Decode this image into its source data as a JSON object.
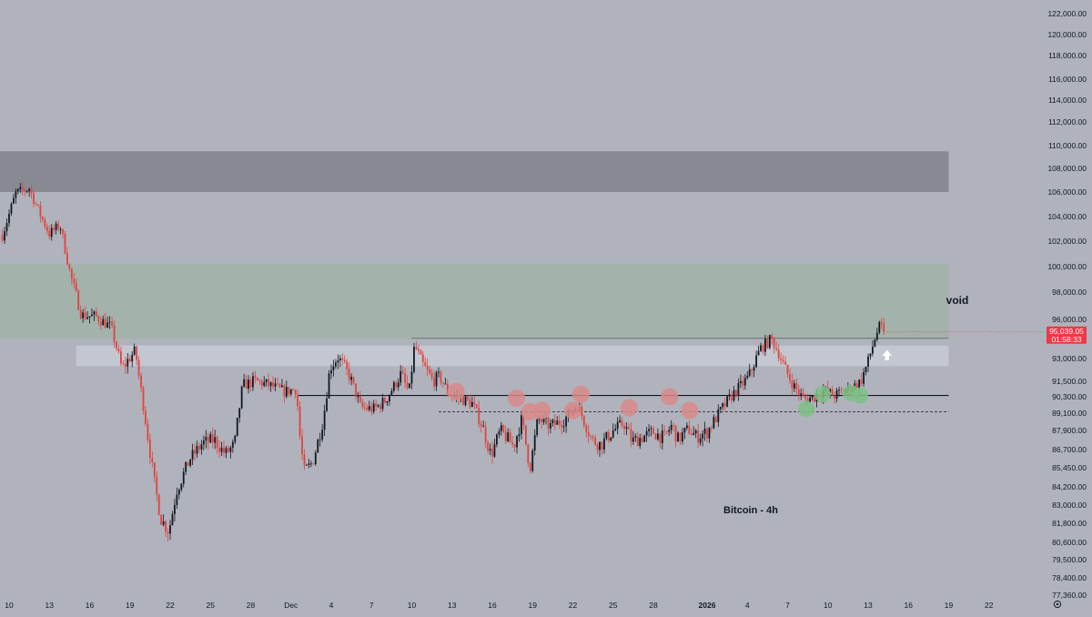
{
  "chart_data": {
    "type": "candlestick",
    "title": "Bitcoin - 4h",
    "annotation": "void",
    "colors": {
      "background": "#b0b3bb",
      "up": "#131722",
      "down": "#e0433f",
      "price_badge": "#f23645",
      "supply_zone": "#878a92",
      "void_zone": "#a3b2aa",
      "light_zone": "#c4c7cf",
      "marker_red": "#d98a8a",
      "marker_green": "#7fbf86"
    },
    "current_price": {
      "value": 95039,
      "label": "95,039.05",
      "countdown": "01:58:33"
    },
    "y_ticks": [
      {
        "value": 122000,
        "label": "122,000.00"
      },
      {
        "value": 120000,
        "label": "120,000.00"
      },
      {
        "value": 118000,
        "label": "118,000.00"
      },
      {
        "value": 116000,
        "label": "116,000.00"
      },
      {
        "value": 114000,
        "label": "114,000.00"
      },
      {
        "value": 112000,
        "label": "112,000.00"
      },
      {
        "value": 110000,
        "label": "110,000.00"
      },
      {
        "value": 108000,
        "label": "108,000.00"
      },
      {
        "value": 106000,
        "label": "106,000.00"
      },
      {
        "value": 104000,
        "label": "104,000.00"
      },
      {
        "value": 102000,
        "label": "102,000.00"
      },
      {
        "value": 100000,
        "label": "100,000.00"
      },
      {
        "value": 98000,
        "label": "98,000.00"
      },
      {
        "value": 96000,
        "label": "96,000.00"
      },
      {
        "value": 93000,
        "label": "93,000.00"
      },
      {
        "value": 91500,
        "label": "91,500.00"
      },
      {
        "value": 90300,
        "label": "90,300.00"
      },
      {
        "value": 89100,
        "label": "89,100.00"
      },
      {
        "value": 87900,
        "label": "87,900.00"
      },
      {
        "value": 86700,
        "label": "86,700.00"
      },
      {
        "value": 85450,
        "label": "85,450.00"
      },
      {
        "value": 84200,
        "label": "84,200.00"
      },
      {
        "value": 83000,
        "label": "83,000.00"
      },
      {
        "value": 81800,
        "label": "81,800.00"
      },
      {
        "value": 80600,
        "label": "80,600.00"
      },
      {
        "value": 79500,
        "label": "79,500.00"
      },
      {
        "value": 78400,
        "label": "78,400.00"
      },
      {
        "value": 77360,
        "label": "77,360.00"
      }
    ],
    "x_ticks": [
      {
        "day": 0,
        "label": "10"
      },
      {
        "day": 3,
        "label": "13"
      },
      {
        "day": 6,
        "label": "16"
      },
      {
        "day": 9,
        "label": "19"
      },
      {
        "day": 12,
        "label": "22"
      },
      {
        "day": 15,
        "label": "25"
      },
      {
        "day": 18,
        "label": "28"
      },
      {
        "day": 21,
        "label": "Dec"
      },
      {
        "day": 24,
        "label": "4"
      },
      {
        "day": 27,
        "label": "7"
      },
      {
        "day": 30,
        "label": "10"
      },
      {
        "day": 33,
        "label": "13"
      },
      {
        "day": 36,
        "label": "16"
      },
      {
        "day": 39,
        "label": "19"
      },
      {
        "day": 42,
        "label": "22"
      },
      {
        "day": 45,
        "label": "25"
      },
      {
        "day": 48,
        "label": "28"
      },
      {
        "day": 52,
        "label": "2026",
        "bold": true
      },
      {
        "day": 55,
        "label": "4"
      },
      {
        "day": 58,
        "label": "7"
      },
      {
        "day": 61,
        "label": "10"
      },
      {
        "day": 64,
        "label": "13"
      },
      {
        "day": 67,
        "label": "16"
      },
      {
        "day": 70,
        "label": "19"
      },
      {
        "day": 73,
        "label": "22"
      }
    ],
    "zones": [
      {
        "name": "supply",
        "from_day": -1,
        "to_day": 70,
        "low": 106000,
        "high": 109500
      },
      {
        "name": "void",
        "from_day": -1,
        "to_day": 70,
        "low": 94500,
        "high": 100200
      },
      {
        "name": "resistance-band",
        "from_day": 5,
        "to_day": 70,
        "low": 92500,
        "high": 94000
      }
    ],
    "levels": [
      {
        "name": "range-high",
        "from_day": 30,
        "to_day": 70,
        "price": 94550,
        "style": "thin"
      },
      {
        "name": "range-mid",
        "from_day": 21.5,
        "to_day": 70,
        "price": 90400,
        "style": "solid"
      },
      {
        "name": "range-low",
        "from_day": 32,
        "to_day": 70,
        "price": 89200,
        "style": "dashed"
      }
    ],
    "markers_red": [
      {
        "day": 33.3,
        "price": 90700
      },
      {
        "day": 37.8,
        "price": 90200
      },
      {
        "day": 38.8,
        "price": 89200
      },
      {
        "day": 39.7,
        "price": 89300
      },
      {
        "day": 42.0,
        "price": 89300
      },
      {
        "day": 42.6,
        "price": 90500
      },
      {
        "day": 46.2,
        "price": 89500
      },
      {
        "day": 49.2,
        "price": 90300
      },
      {
        "day": 50.7,
        "price": 89300
      }
    ],
    "markers_green": [
      {
        "day": 59.4,
        "price": 89400
      },
      {
        "day": 60.6,
        "price": 90500
      },
      {
        "day": 62.7,
        "price": 90600
      },
      {
        "day": 63.4,
        "price": 90400
      }
    ],
    "anchors": [
      [
        -0.5,
        102500
      ],
      [
        0.5,
        105900
      ],
      [
        1.5,
        106300
      ],
      [
        2.3,
        104200
      ],
      [
        3.0,
        102600
      ],
      [
        3.8,
        103300
      ],
      [
        4.6,
        99200
      ],
      [
        5.4,
        96300
      ],
      [
        6.5,
        96200
      ],
      [
        7.6,
        95400
      ],
      [
        8.4,
        92300
      ],
      [
        9.4,
        93600
      ],
      [
        10.2,
        88400
      ],
      [
        10.8,
        84600
      ],
      [
        11.3,
        82100
      ],
      [
        11.9,
        81300
      ],
      [
        12.5,
        84000
      ],
      [
        13.5,
        86100
      ],
      [
        14.4,
        87100
      ],
      [
        15.3,
        87300
      ],
      [
        16.1,
        86400
      ],
      [
        16.8,
        87000
      ],
      [
        17.4,
        91200
      ],
      [
        18.4,
        91500
      ],
      [
        19.4,
        91200
      ],
      [
        20.5,
        90700
      ],
      [
        21.4,
        90900
      ],
      [
        21.7,
        87100
      ],
      [
        22.0,
        85200
      ],
      [
        22.6,
        85800
      ],
      [
        23.4,
        88600
      ],
      [
        23.9,
        92400
      ],
      [
        24.5,
        93100
      ],
      [
        25.4,
        91800
      ],
      [
        26.2,
        89500
      ],
      [
        27.2,
        89400
      ],
      [
        28.0,
        90000
      ],
      [
        29.2,
        92000
      ],
      [
        29.8,
        90600
      ],
      [
        30.2,
        94000
      ],
      [
        30.8,
        92600
      ],
      [
        31.6,
        91500
      ],
      [
        32.1,
        91800
      ],
      [
        32.8,
        90500
      ],
      [
        33.6,
        90200
      ],
      [
        34.5,
        89800
      ],
      [
        35.3,
        88100
      ],
      [
        35.9,
        86300
      ],
      [
        36.6,
        87900
      ],
      [
        37.6,
        86900
      ],
      [
        38.2,
        88700
      ],
      [
        38.8,
        85400
      ],
      [
        39.4,
        88700
      ],
      [
        40.3,
        88200
      ],
      [
        41.3,
        88600
      ],
      [
        42.3,
        89700
      ],
      [
        42.7,
        88900
      ],
      [
        43.4,
        87300
      ],
      [
        44.1,
        87000
      ],
      [
        45.0,
        87900
      ],
      [
        45.8,
        88400
      ],
      [
        46.4,
        87200
      ],
      [
        47.2,
        87500
      ],
      [
        48.0,
        87800
      ],
      [
        48.8,
        87400
      ],
      [
        49.4,
        88300
      ],
      [
        49.8,
        87300
      ],
      [
        50.6,
        88000
      ],
      [
        51.2,
        87500
      ],
      [
        52.0,
        87800
      ],
      [
        53.1,
        89400
      ],
      [
        54.0,
        90600
      ],
      [
        55.1,
        91800
      ],
      [
        56.0,
        93800
      ],
      [
        56.8,
        94500
      ],
      [
        57.3,
        93500
      ],
      [
        57.8,
        92300
      ],
      [
        58.5,
        91100
      ],
      [
        59.2,
        90100
      ],
      [
        60.0,
        90300
      ],
      [
        60.7,
        90800
      ],
      [
        61.5,
        90400
      ],
      [
        62.5,
        90900
      ],
      [
        63.4,
        91400
      ],
      [
        64.0,
        92800
      ],
      [
        64.6,
        94900
      ],
      [
        64.9,
        95500
      ],
      [
        65.2,
        95039
      ]
    ]
  }
}
